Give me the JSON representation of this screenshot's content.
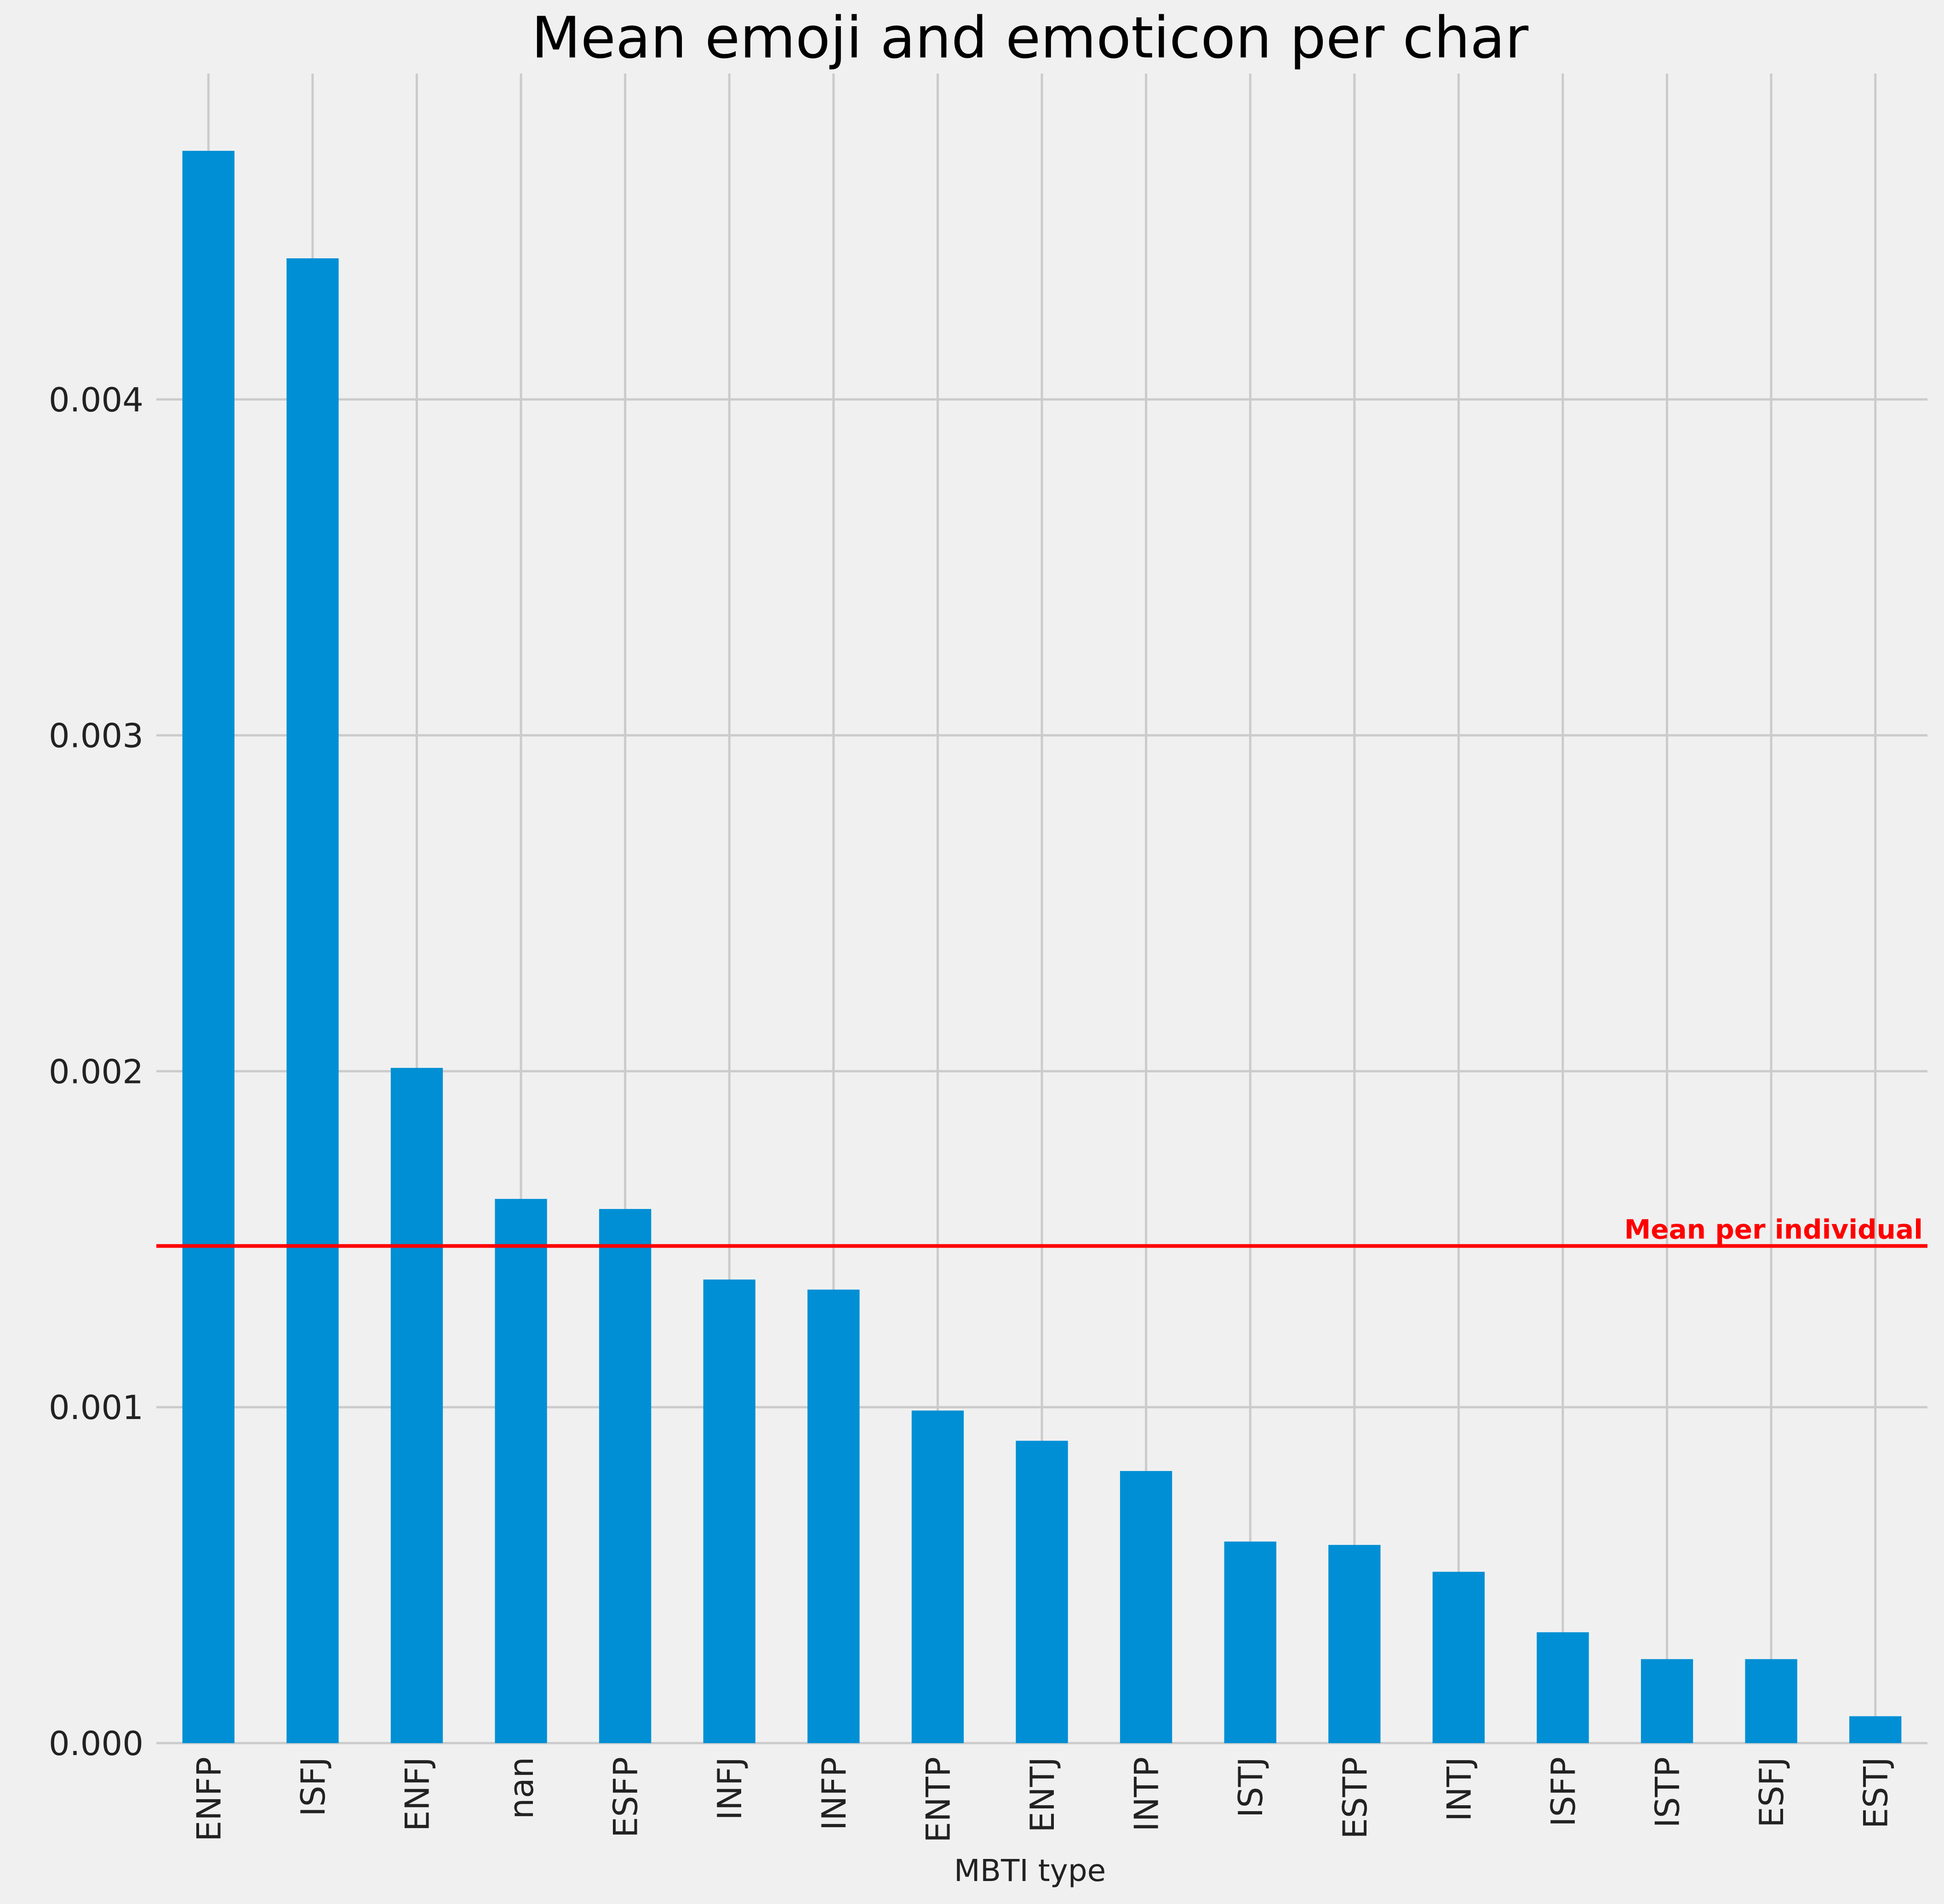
{
  "chart_data": {
    "type": "bar",
    "title": "Mean emoji and emoticon per char",
    "xlabel": "MBTI type",
    "ylabel": "",
    "categories": [
      "ENFP",
      "ISFJ",
      "ENFJ",
      "nan",
      "ESFP",
      "INFJ",
      "INFP",
      "ENTP",
      "ENTJ",
      "INTP",
      "ISTJ",
      "ESTP",
      "INTJ",
      "ISFP",
      "ISTP",
      "ESFJ",
      "ESTJ"
    ],
    "values": [
      0.00474,
      0.00442,
      0.00201,
      0.00162,
      0.00159,
      0.00138,
      0.00135,
      0.00099,
      0.0009,
      0.00081,
      0.0006,
      0.00059,
      0.00051,
      0.00033,
      0.00025,
      0.00025,
      8e-05
    ],
    "yticks": [
      0.0,
      0.001,
      0.002,
      0.003,
      0.004
    ],
    "ytick_labels": [
      "0.000",
      "0.001",
      "0.002",
      "0.003",
      "0.004"
    ],
    "ylim": [
      0,
      0.00497
    ],
    "grid": true,
    "bar_color": "#008fd5",
    "reference_line": {
      "value": 0.00148,
      "label": "Mean per individual",
      "color": "#ff0000"
    }
  }
}
